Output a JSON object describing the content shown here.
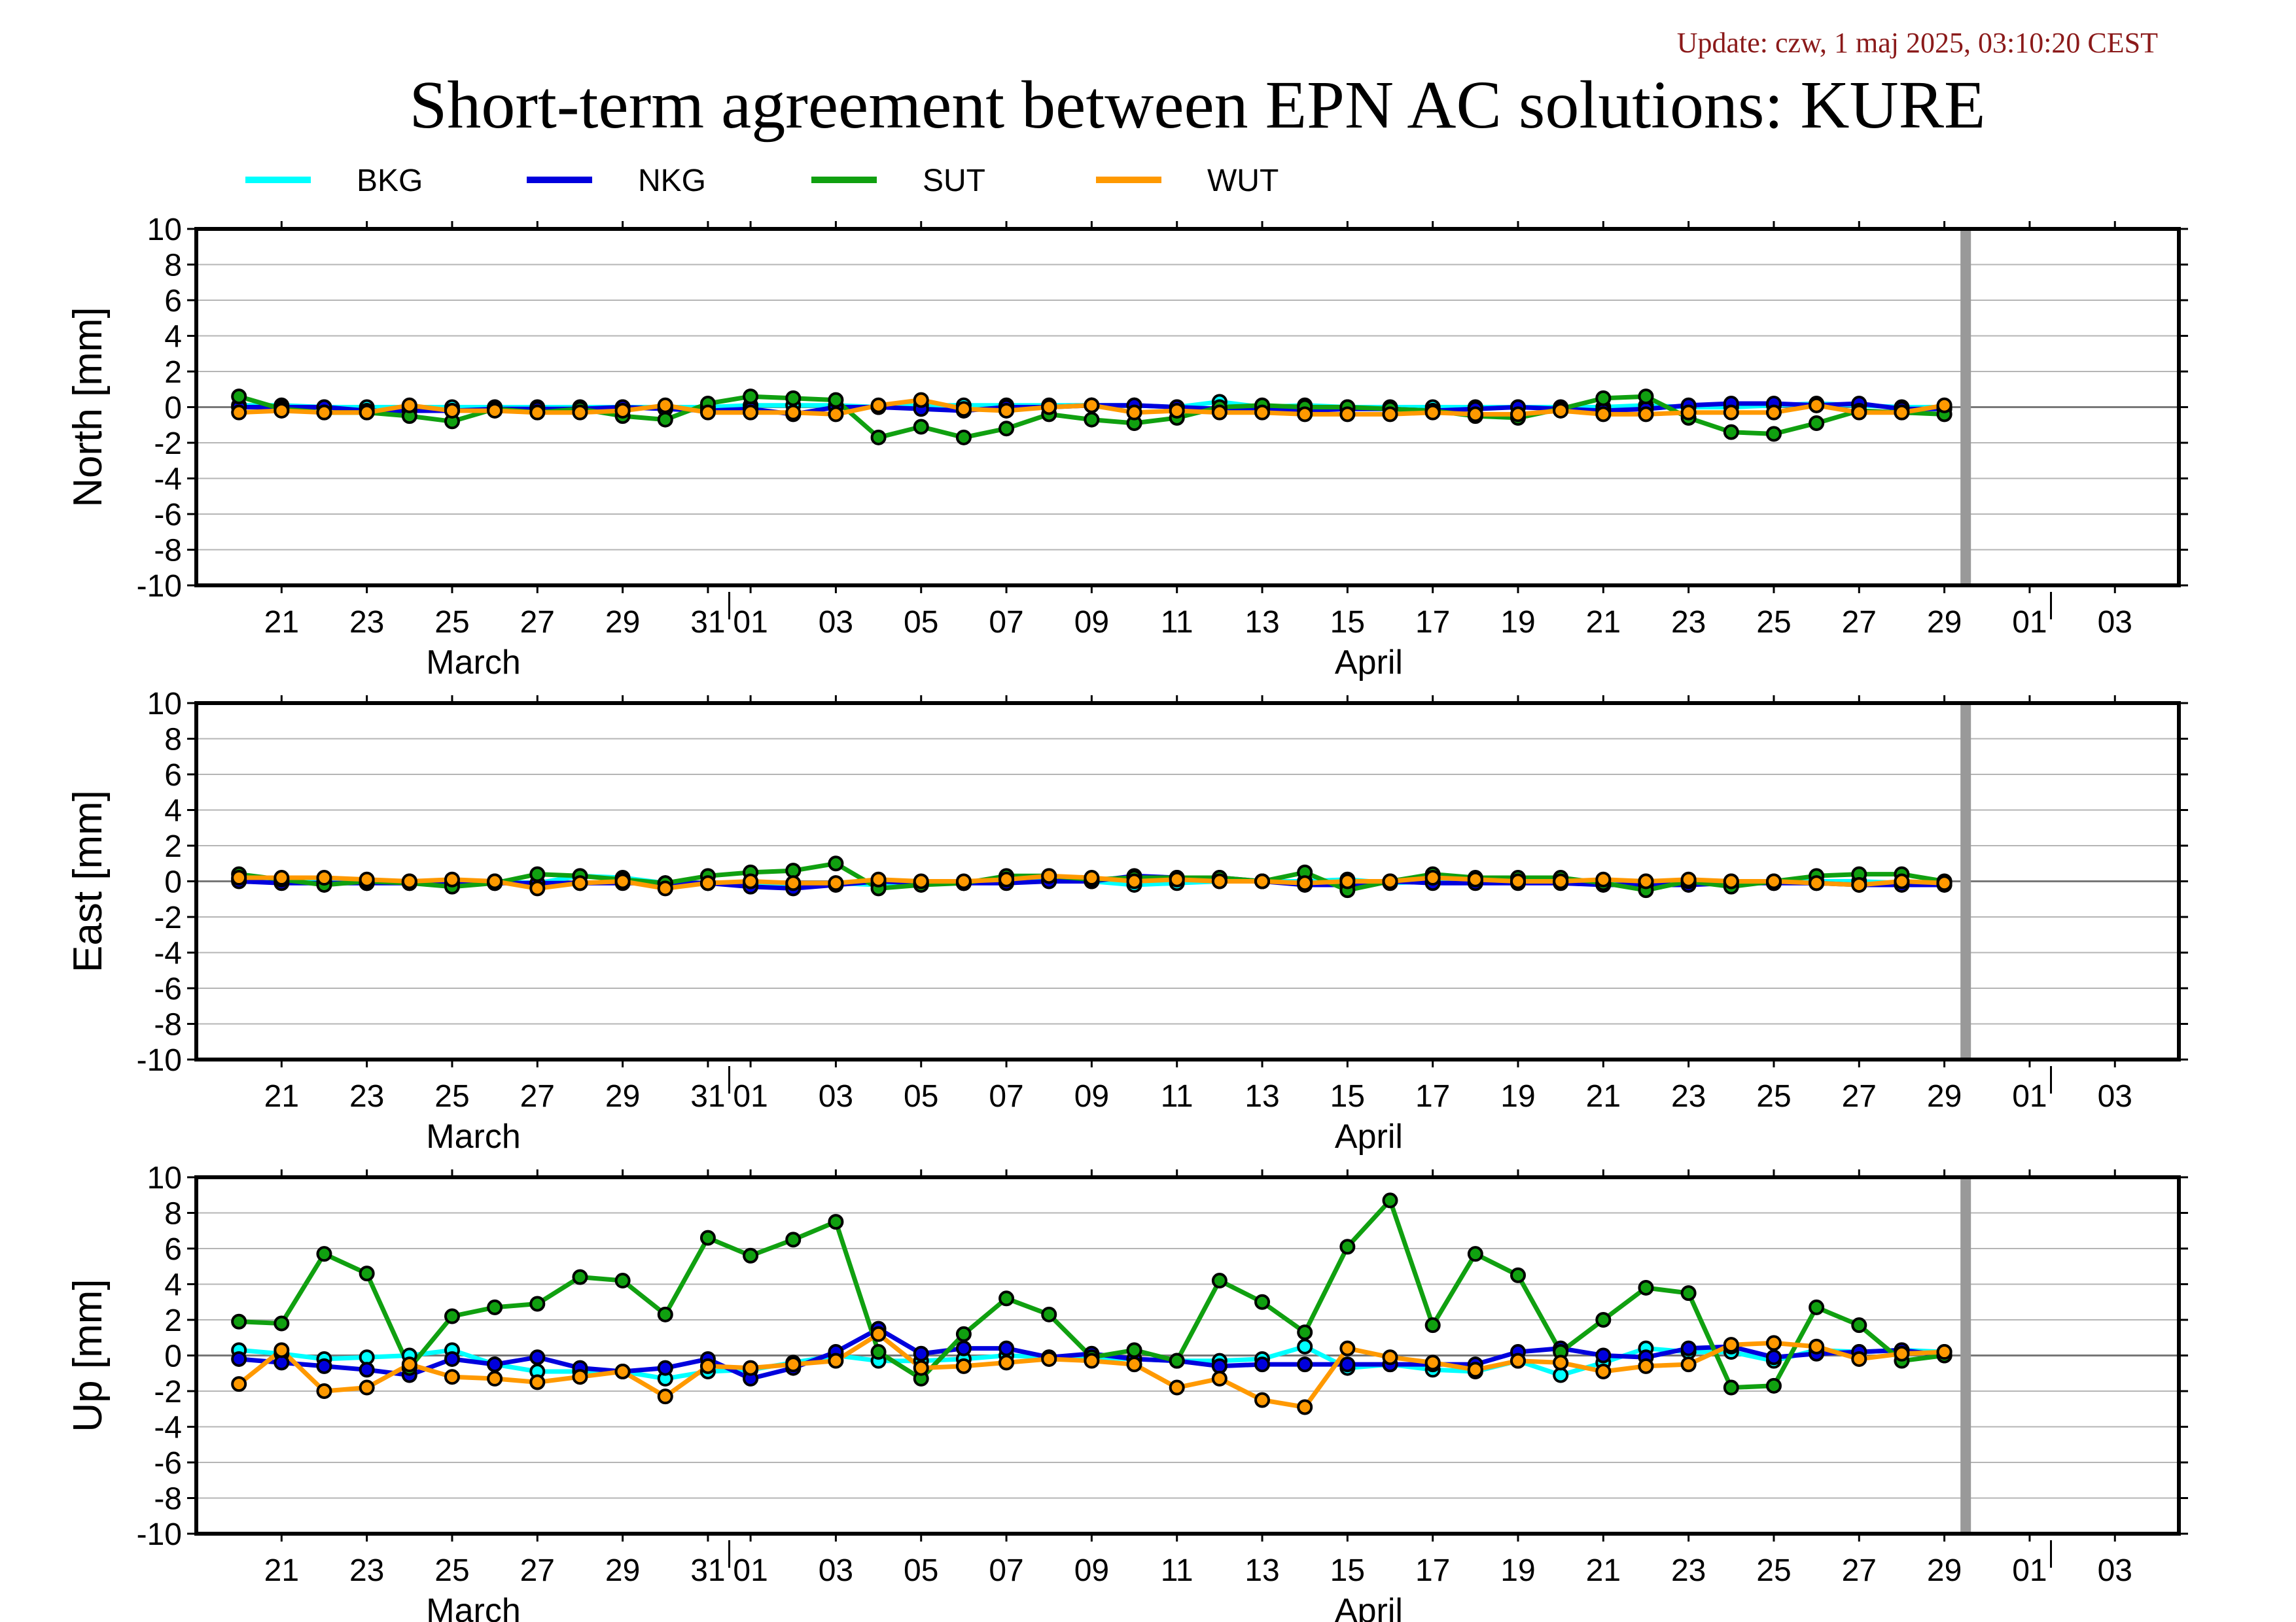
{
  "header": {
    "update": "Update: czw, 1 maj 2025, 03:10:20 CEST",
    "title": "Short-term agreement between EPN AC solutions: KURE"
  },
  "legend": [
    {
      "name": "BKG",
      "color": "#00ffff"
    },
    {
      "name": "NKG",
      "color": "#0000dd"
    },
    {
      "name": "SUT",
      "color": "#10a010"
    },
    {
      "name": "WUT",
      "color": "#ff9900"
    }
  ],
  "x_axis": {
    "tick_labels": [
      "21",
      "23",
      "25",
      "27",
      "29",
      "31",
      "01",
      "03",
      "05",
      "07",
      "09",
      "11",
      "13",
      "15",
      "17",
      "19",
      "21",
      "23",
      "25",
      "27",
      "29",
      "01",
      "03"
    ],
    "tick_days": [
      2,
      4,
      6,
      8,
      10,
      12,
      13,
      15,
      17,
      19,
      21,
      23,
      25,
      27,
      29,
      31,
      33,
      35,
      37,
      39,
      41,
      43,
      45
    ],
    "month_labels": [
      {
        "text": "March",
        "day": 6.5
      },
      {
        "text": "April",
        "day": 27.5
      }
    ],
    "month_separators": [
      12.5,
      43.5
    ],
    "current_day_marker": 41.5,
    "day_range": [
      0,
      46.5
    ],
    "note": "day 1 = 20 March 2025, day 13 = 1 April 2025"
  },
  "chart_data": [
    {
      "type": "line",
      "ylabel": "North [mm]",
      "ylim": [
        -10,
        10
      ],
      "yticks": [
        10,
        8,
        6,
        4,
        2,
        0,
        -2,
        -4,
        -6,
        -8,
        -10
      ],
      "grid": true,
      "x": [
        1,
        2,
        3,
        4,
        5,
        6,
        7,
        8,
        9,
        10,
        11,
        12,
        13,
        14,
        15,
        16,
        17,
        18,
        19,
        20,
        21,
        22,
        23,
        24,
        25,
        26,
        27,
        28,
        29,
        30,
        31,
        32,
        33,
        34,
        35,
        36,
        37,
        38,
        39,
        40,
        41
      ],
      "series": [
        {
          "name": "BKG",
          "values": [
            0.1,
            0.1,
            0.0,
            0.0,
            0.0,
            0.0,
            0.0,
            0.0,
            0.0,
            0.0,
            0.0,
            0.0,
            0.1,
            0.1,
            0.1,
            0.0,
            0.1,
            0.1,
            0.1,
            0.1,
            0.1,
            0.1,
            0.0,
            0.3,
            0.0,
            0.1,
            0.0,
            0.0,
            0.0,
            0.0,
            0.0,
            0.0,
            0.0,
            0.1,
            0.0,
            0.0,
            0.1,
            0.2,
            0.1,
            0.0,
            0.0
          ]
        },
        {
          "name": "NKG",
          "values": [
            0.0,
            0.0,
            0.0,
            -0.2,
            -0.2,
            -0.2,
            -0.1,
            -0.1,
            -0.1,
            0.0,
            -0.1,
            -0.2,
            -0.1,
            -0.4,
            0.0,
            0.0,
            -0.1,
            -0.2,
            0.0,
            0.0,
            0.1,
            0.1,
            0.0,
            -0.1,
            -0.1,
            -0.2,
            -0.1,
            -0.1,
            -0.2,
            -0.1,
            0.0,
            -0.1,
            -0.2,
            -0.1,
            0.1,
            0.2,
            0.2,
            0.1,
            0.2,
            -0.1,
            -0.1
          ]
        },
        {
          "name": "SUT",
          "values": [
            0.6,
            -0.1,
            -0.3,
            -0.3,
            -0.5,
            -0.8,
            -0.1,
            -0.3,
            -0.1,
            -0.5,
            -0.7,
            0.2,
            0.6,
            0.5,
            0.4,
            -1.7,
            -1.1,
            -1.7,
            -1.2,
            -0.4,
            -0.7,
            -0.9,
            -0.6,
            0.0,
            0.1,
            0.0,
            0.0,
            -0.1,
            -0.2,
            -0.5,
            -0.6,
            -0.1,
            0.5,
            0.6,
            -0.6,
            -1.4,
            -1.5,
            -0.9,
            -0.2,
            -0.3,
            -0.4
          ]
        },
        {
          "name": "WUT",
          "values": [
            -0.3,
            -0.2,
            -0.3,
            -0.3,
            0.1,
            -0.2,
            -0.2,
            -0.3,
            -0.3,
            -0.2,
            0.1,
            -0.3,
            -0.3,
            -0.3,
            -0.4,
            0.1,
            0.4,
            -0.1,
            -0.2,
            0.0,
            0.1,
            -0.3,
            -0.2,
            -0.3,
            -0.3,
            -0.4,
            -0.4,
            -0.4,
            -0.3,
            -0.4,
            -0.4,
            -0.2,
            -0.4,
            -0.4,
            -0.3,
            -0.3,
            -0.3,
            0.1,
            -0.3,
            -0.3,
            0.1
          ]
        }
      ]
    },
    {
      "type": "line",
      "ylabel": "East [mm]",
      "ylim": [
        -10,
        10
      ],
      "yticks": [
        10,
        8,
        6,
        4,
        2,
        0,
        -2,
        -4,
        -6,
        -8,
        -10
      ],
      "grid": true,
      "x": [
        1,
        2,
        3,
        4,
        5,
        6,
        7,
        8,
        9,
        10,
        11,
        12,
        13,
        14,
        15,
        16,
        17,
        18,
        19,
        20,
        21,
        22,
        23,
        24,
        25,
        26,
        27,
        28,
        29,
        30,
        31,
        32,
        33,
        34,
        35,
        36,
        37,
        38,
        39,
        40,
        41
      ],
      "series": [
        {
          "name": "BKG",
          "values": [
            0.1,
            0.0,
            0.0,
            -0.1,
            0.0,
            -0.1,
            0.0,
            -0.1,
            0.3,
            0.2,
            -0.1,
            -0.1,
            -0.1,
            -0.2,
            -0.1,
            -0.2,
            -0.1,
            -0.1,
            0.1,
            0.1,
            0.0,
            -0.2,
            -0.1,
            0.0,
            0.0,
            0.0,
            0.1,
            -0.1,
            0.0,
            0.0,
            0.0,
            0.0,
            -0.1,
            0.0,
            0.0,
            0.0,
            -0.1,
            0.0,
            0.0,
            -0.1,
            -0.1
          ]
        },
        {
          "name": "NKG",
          "values": [
            0.0,
            -0.1,
            -0.1,
            -0.1,
            -0.1,
            -0.1,
            -0.1,
            -0.1,
            -0.1,
            -0.1,
            -0.1,
            -0.1,
            -0.3,
            -0.4,
            -0.2,
            0.0,
            -0.1,
            -0.1,
            -0.1,
            0.0,
            0.0,
            0.3,
            0.2,
            0.2,
            0.0,
            -0.2,
            -0.2,
            0.0,
            -0.1,
            -0.1,
            -0.1,
            -0.1,
            -0.2,
            -0.2,
            -0.2,
            -0.1,
            -0.1,
            -0.1,
            -0.2,
            -0.2,
            -0.2
          ]
        },
        {
          "name": "SUT",
          "values": [
            0.4,
            0.1,
            -0.2,
            0.0,
            -0.1,
            -0.3,
            -0.1,
            0.4,
            0.3,
            0.1,
            -0.1,
            0.3,
            0.5,
            0.6,
            1.0,
            -0.4,
            -0.2,
            -0.1,
            0.3,
            0.3,
            0.1,
            0.2,
            0.2,
            0.2,
            0.0,
            0.5,
            -0.5,
            0.0,
            0.4,
            0.2,
            0.2,
            0.2,
            -0.1,
            -0.5,
            0.0,
            -0.3,
            0.0,
            0.3,
            0.4,
            0.4,
            0.0
          ]
        },
        {
          "name": "WUT",
          "values": [
            0.2,
            0.2,
            0.2,
            0.1,
            0.0,
            0.1,
            0.0,
            -0.4,
            -0.1,
            0.0,
            -0.4,
            -0.1,
            0.0,
            -0.1,
            -0.1,
            0.1,
            0.0,
            0.0,
            0.1,
            0.3,
            0.2,
            0.0,
            0.1,
            0.0,
            0.0,
            -0.1,
            0.0,
            0.0,
            0.2,
            0.1,
            0.0,
            0.0,
            0.1,
            0.0,
            0.1,
            0.0,
            0.0,
            -0.1,
            -0.2,
            0.0,
            -0.1
          ]
        }
      ]
    },
    {
      "type": "line",
      "ylabel": "Up [mm]",
      "ylim": [
        -10,
        10
      ],
      "yticks": [
        10,
        8,
        6,
        4,
        2,
        0,
        -2,
        -4,
        -6,
        -8,
        -10
      ],
      "grid": true,
      "x": [
        1,
        2,
        3,
        4,
        5,
        6,
        7,
        8,
        9,
        10,
        11,
        12,
        13,
        14,
        15,
        16,
        17,
        18,
        19,
        20,
        21,
        22,
        23,
        24,
        25,
        26,
        27,
        28,
        29,
        30,
        31,
        32,
        33,
        34,
        35,
        36,
        37,
        38,
        39,
        40,
        41
      ],
      "series": [
        {
          "name": "BKG",
          "values": [
            0.3,
            0.1,
            -0.2,
            -0.1,
            0.0,
            0.3,
            -0.5,
            -0.9,
            -0.9,
            -0.9,
            -1.3,
            -0.9,
            -0.8,
            -0.4,
            0.0,
            -0.3,
            -0.3,
            -0.2,
            0.0,
            -0.1,
            -0.1,
            -0.2,
            -0.3,
            -0.3,
            -0.2,
            0.5,
            -0.7,
            -0.5,
            -0.8,
            -0.9,
            -0.3,
            -1.1,
            -0.4,
            0.4,
            0.2,
            0.2,
            -0.3,
            0.3,
            0.2,
            0.3,
            0.2
          ]
        },
        {
          "name": "NKG",
          "values": [
            -0.2,
            -0.4,
            -0.6,
            -0.8,
            -1.1,
            -0.2,
            -0.5,
            -0.1,
            -0.7,
            -0.9,
            -0.7,
            -0.2,
            -1.3,
            -0.7,
            0.2,
            1.5,
            0.1,
            0.4,
            0.4,
            -0.1,
            0.1,
            -0.2,
            -0.3,
            -0.6,
            -0.5,
            -0.5,
            -0.5,
            -0.5,
            -0.5,
            -0.5,
            0.2,
            0.4,
            0.0,
            -0.1,
            0.4,
            0.5,
            -0.1,
            0.1,
            0.2,
            0.3,
            0.0
          ]
        },
        {
          "name": "SUT",
          "values": [
            1.9,
            1.8,
            5.7,
            4.6,
            -0.7,
            2.2,
            2.7,
            2.9,
            4.4,
            4.2,
            2.3,
            6.6,
            5.6,
            6.5,
            7.5,
            0.2,
            -1.3,
            1.2,
            3.2,
            2.3,
            -0.1,
            0.3,
            -0.3,
            4.2,
            3.0,
            1.3,
            6.1,
            8.7,
            1.7,
            5.7,
            4.5,
            0.2,
            2.0,
            3.8,
            3.5,
            -1.8,
            -1.7,
            2.7,
            1.7,
            -0.3,
            0.0
          ]
        },
        {
          "name": "WUT",
          "values": [
            -1.6,
            0.3,
            -2.0,
            -1.8,
            -0.5,
            -1.2,
            -1.3,
            -1.5,
            -1.2,
            -0.9,
            -2.3,
            -0.6,
            -0.7,
            -0.5,
            -0.3,
            1.2,
            -0.7,
            -0.6,
            -0.4,
            -0.2,
            -0.3,
            -0.5,
            -1.8,
            -1.3,
            -2.5,
            -2.9,
            0.4,
            -0.1,
            -0.4,
            -0.8,
            -0.3,
            -0.4,
            -0.9,
            -0.6,
            -0.5,
            0.6,
            0.7,
            0.5,
            -0.2,
            0.1,
            0.2
          ]
        }
      ]
    }
  ]
}
